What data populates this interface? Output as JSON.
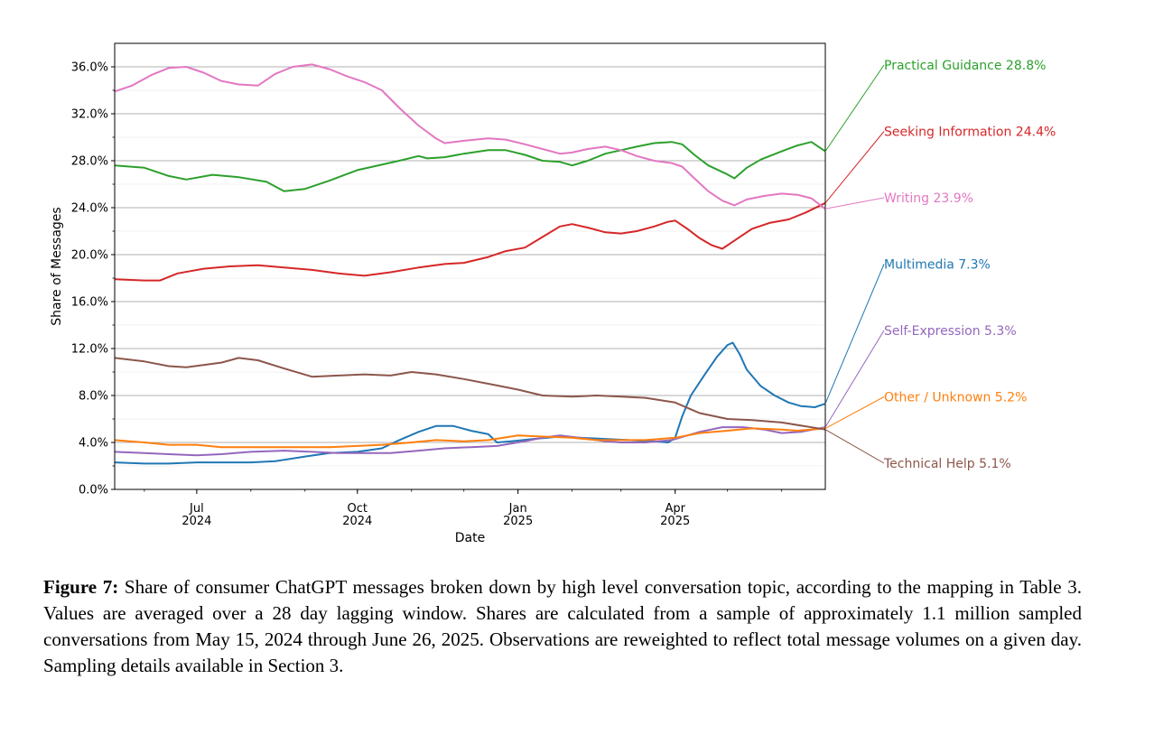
{
  "chart_data": {
    "type": "line",
    "xlabel": "Date",
    "ylabel": "Share of Messages",
    "x_range": [
      "2024-05-15",
      "2025-06-26"
    ],
    "ylim": [
      0,
      38
    ],
    "y_ticks": [
      0,
      4,
      8,
      12,
      16,
      20,
      24,
      28,
      32,
      36
    ],
    "y_tick_labels": [
      "0.0%",
      "4.0%",
      "8.0%",
      "12.0%",
      "16.0%",
      "20.0%",
      "24.0%",
      "28.0%",
      "32.0%",
      "36.0%"
    ],
    "x_ticks": [
      {
        "date": "2024-07-01",
        "month": "Jul",
        "year": "2024"
      },
      {
        "date": "2024-10-01",
        "month": "Oct",
        "year": "2024"
      },
      {
        "date": "2025-01-01",
        "month": "Jan",
        "year": "2025"
      },
      {
        "date": "2025-04-01",
        "month": "Apr",
        "year": "2025"
      }
    ],
    "grid": "horizontal",
    "series": [
      {
        "name": "Practical Guidance",
        "end_label": "28.8%",
        "color": "#2ca02c",
        "points": [
          [
            "2024-05-15",
            27.6
          ],
          [
            "2024-06-01",
            27.4
          ],
          [
            "2024-06-15",
            26.7
          ],
          [
            "2024-06-25",
            26.4
          ],
          [
            "2024-07-10",
            26.8
          ],
          [
            "2024-07-25",
            26.6
          ],
          [
            "2024-08-10",
            26.2
          ],
          [
            "2024-08-20",
            25.4
          ],
          [
            "2024-09-01",
            25.6
          ],
          [
            "2024-09-15",
            26.3
          ],
          [
            "2024-10-01",
            27.2
          ],
          [
            "2024-10-10",
            27.5
          ],
          [
            "2024-10-25",
            28.0
          ],
          [
            "2024-11-05",
            28.4
          ],
          [
            "2024-11-10",
            28.2
          ],
          [
            "2024-11-20",
            28.3
          ],
          [
            "2024-12-01",
            28.6
          ],
          [
            "2024-12-15",
            28.9
          ],
          [
            "2024-12-25",
            28.9
          ],
          [
            "2025-01-05",
            28.5
          ],
          [
            "2025-01-15",
            28.0
          ],
          [
            "2025-01-25",
            27.9
          ],
          [
            "2025-02-01",
            27.6
          ],
          [
            "2025-02-10",
            28.0
          ],
          [
            "2025-02-20",
            28.6
          ],
          [
            "2025-03-01",
            28.9
          ],
          [
            "2025-03-10",
            29.2
          ],
          [
            "2025-03-20",
            29.5
          ],
          [
            "2025-03-30",
            29.6
          ],
          [
            "2025-04-05",
            29.4
          ],
          [
            "2025-04-12",
            28.5
          ],
          [
            "2025-04-20",
            27.6
          ],
          [
            "2025-04-30",
            26.9
          ],
          [
            "2025-05-05",
            26.5
          ],
          [
            "2025-05-12",
            27.4
          ],
          [
            "2025-05-20",
            28.1
          ],
          [
            "2025-06-01",
            28.8
          ],
          [
            "2025-06-10",
            29.3
          ],
          [
            "2025-06-18",
            29.6
          ],
          [
            "2025-06-26",
            28.8
          ]
        ]
      },
      {
        "name": "Seeking Information",
        "end_label": "24.4%",
        "color": "#d62728",
        "points": [
          [
            "2024-05-15",
            17.9
          ],
          [
            "2024-06-01",
            17.8
          ],
          [
            "2024-06-10",
            17.8
          ],
          [
            "2024-06-20",
            18.4
          ],
          [
            "2024-07-05",
            18.8
          ],
          [
            "2024-07-20",
            19.0
          ],
          [
            "2024-08-05",
            19.1
          ],
          [
            "2024-08-20",
            18.9
          ],
          [
            "2024-09-05",
            18.7
          ],
          [
            "2024-09-20",
            18.4
          ],
          [
            "2024-10-05",
            18.2
          ],
          [
            "2024-10-20",
            18.5
          ],
          [
            "2024-11-05",
            18.9
          ],
          [
            "2024-11-20",
            19.2
          ],
          [
            "2024-12-01",
            19.3
          ],
          [
            "2024-12-15",
            19.8
          ],
          [
            "2024-12-25",
            20.3
          ],
          [
            "2025-01-05",
            20.6
          ],
          [
            "2025-01-15",
            21.5
          ],
          [
            "2025-01-25",
            22.4
          ],
          [
            "2025-02-01",
            22.6
          ],
          [
            "2025-02-10",
            22.3
          ],
          [
            "2025-02-20",
            21.9
          ],
          [
            "2025-03-01",
            21.8
          ],
          [
            "2025-03-10",
            22.0
          ],
          [
            "2025-03-20",
            22.4
          ],
          [
            "2025-03-28",
            22.8
          ],
          [
            "2025-04-01",
            22.9
          ],
          [
            "2025-04-08",
            22.2
          ],
          [
            "2025-04-15",
            21.4
          ],
          [
            "2025-04-22",
            20.8
          ],
          [
            "2025-04-28",
            20.5
          ],
          [
            "2025-05-05",
            21.2
          ],
          [
            "2025-05-15",
            22.2
          ],
          [
            "2025-05-25",
            22.7
          ],
          [
            "2025-06-05",
            23.0
          ],
          [
            "2025-06-15",
            23.6
          ],
          [
            "2025-06-26",
            24.4
          ]
        ]
      },
      {
        "name": "Writing",
        "end_label": "23.9%",
        "color": "#e377c2",
        "points": [
          [
            "2024-05-15",
            33.9
          ],
          [
            "2024-05-25",
            34.4
          ],
          [
            "2024-06-05",
            35.3
          ],
          [
            "2024-06-15",
            35.9
          ],
          [
            "2024-06-25",
            36.0
          ],
          [
            "2024-07-05",
            35.5
          ],
          [
            "2024-07-15",
            34.8
          ],
          [
            "2024-07-25",
            34.5
          ],
          [
            "2024-08-05",
            34.4
          ],
          [
            "2024-08-15",
            35.4
          ],
          [
            "2024-08-25",
            36.0
          ],
          [
            "2024-09-05",
            36.2
          ],
          [
            "2024-09-15",
            35.8
          ],
          [
            "2024-09-25",
            35.2
          ],
          [
            "2024-10-05",
            34.7
          ],
          [
            "2024-10-15",
            34.0
          ],
          [
            "2024-10-25",
            32.5
          ],
          [
            "2024-11-05",
            31.0
          ],
          [
            "2024-11-15",
            29.9
          ],
          [
            "2024-11-20",
            29.5
          ],
          [
            "2024-12-01",
            29.7
          ],
          [
            "2024-12-15",
            29.9
          ],
          [
            "2024-12-25",
            29.8
          ],
          [
            "2025-01-05",
            29.4
          ],
          [
            "2025-01-15",
            29.0
          ],
          [
            "2025-01-25",
            28.6
          ],
          [
            "2025-02-01",
            28.7
          ],
          [
            "2025-02-10",
            29.0
          ],
          [
            "2025-02-20",
            29.2
          ],
          [
            "2025-03-01",
            28.9
          ],
          [
            "2025-03-10",
            28.4
          ],
          [
            "2025-03-20",
            28.0
          ],
          [
            "2025-03-30",
            27.8
          ],
          [
            "2025-04-05",
            27.5
          ],
          [
            "2025-04-12",
            26.5
          ],
          [
            "2025-04-20",
            25.4
          ],
          [
            "2025-04-28",
            24.6
          ],
          [
            "2025-05-05",
            24.2
          ],
          [
            "2025-05-12",
            24.7
          ],
          [
            "2025-05-22",
            25.0
          ],
          [
            "2025-06-01",
            25.2
          ],
          [
            "2025-06-10",
            25.1
          ],
          [
            "2025-06-18",
            24.8
          ],
          [
            "2025-06-26",
            23.9
          ]
        ]
      },
      {
        "name": "Multimedia",
        "end_label": "7.3%",
        "color": "#1f77b4",
        "points": [
          [
            "2024-05-15",
            2.3
          ],
          [
            "2024-06-01",
            2.2
          ],
          [
            "2024-06-15",
            2.2
          ],
          [
            "2024-07-01",
            2.3
          ],
          [
            "2024-07-15",
            2.3
          ],
          [
            "2024-08-01",
            2.3
          ],
          [
            "2024-08-15",
            2.4
          ],
          [
            "2024-09-01",
            2.8
          ],
          [
            "2024-09-15",
            3.1
          ],
          [
            "2024-10-01",
            3.2
          ],
          [
            "2024-10-15",
            3.5
          ],
          [
            "2024-10-25",
            4.2
          ],
          [
            "2024-11-05",
            4.9
          ],
          [
            "2024-11-15",
            5.4
          ],
          [
            "2024-11-25",
            5.4
          ],
          [
            "2024-12-05",
            5.0
          ],
          [
            "2024-12-15",
            4.7
          ],
          [
            "2024-12-20",
            4.0
          ],
          [
            "2024-12-28",
            4.1
          ],
          [
            "2025-01-10",
            4.3
          ],
          [
            "2025-01-25",
            4.5
          ],
          [
            "2025-02-05",
            4.4
          ],
          [
            "2025-02-20",
            4.3
          ],
          [
            "2025-03-05",
            4.2
          ],
          [
            "2025-03-20",
            4.1
          ],
          [
            "2025-03-28",
            4.0
          ],
          [
            "2025-04-01",
            4.4
          ],
          [
            "2025-04-05",
            6.2
          ],
          [
            "2025-04-10",
            8.0
          ],
          [
            "2025-04-18",
            9.8
          ],
          [
            "2025-04-25",
            11.3
          ],
          [
            "2025-05-01",
            12.3
          ],
          [
            "2025-05-04",
            12.5
          ],
          [
            "2025-05-08",
            11.5
          ],
          [
            "2025-05-12",
            10.2
          ],
          [
            "2025-05-20",
            8.8
          ],
          [
            "2025-05-28",
            8.0
          ],
          [
            "2025-06-05",
            7.4
          ],
          [
            "2025-06-12",
            7.1
          ],
          [
            "2025-06-20",
            7.0
          ],
          [
            "2025-06-26",
            7.3
          ]
        ]
      },
      {
        "name": "Self-Expression",
        "end_label": "5.3%",
        "color": "#9467bd",
        "points": [
          [
            "2024-05-15",
            3.2
          ],
          [
            "2024-06-01",
            3.1
          ],
          [
            "2024-06-15",
            3.0
          ],
          [
            "2024-07-01",
            2.9
          ],
          [
            "2024-07-15",
            3.0
          ],
          [
            "2024-08-01",
            3.2
          ],
          [
            "2024-08-20",
            3.3
          ],
          [
            "2024-09-05",
            3.2
          ],
          [
            "2024-09-20",
            3.1
          ],
          [
            "2024-10-05",
            3.1
          ],
          [
            "2024-10-20",
            3.1
          ],
          [
            "2024-11-05",
            3.3
          ],
          [
            "2024-11-20",
            3.5
          ],
          [
            "2024-12-05",
            3.6
          ],
          [
            "2024-12-20",
            3.7
          ],
          [
            "2025-01-05",
            4.1
          ],
          [
            "2025-01-15",
            4.4
          ],
          [
            "2025-01-25",
            4.6
          ],
          [
            "2025-02-05",
            4.4
          ],
          [
            "2025-02-20",
            4.1
          ],
          [
            "2025-03-01",
            4.0
          ],
          [
            "2025-03-15",
            4.0
          ],
          [
            "2025-03-30",
            4.2
          ],
          [
            "2025-04-15",
            4.9
          ],
          [
            "2025-04-28",
            5.3
          ],
          [
            "2025-05-10",
            5.3
          ],
          [
            "2025-05-22",
            5.1
          ],
          [
            "2025-06-01",
            4.8
          ],
          [
            "2025-06-12",
            4.9
          ],
          [
            "2025-06-26",
            5.3
          ]
        ]
      },
      {
        "name": "Other / Unknown",
        "end_label": "5.2%",
        "color": "#ff7f0e",
        "points": [
          [
            "2024-05-15",
            4.2
          ],
          [
            "2024-06-01",
            4.0
          ],
          [
            "2024-06-15",
            3.8
          ],
          [
            "2024-07-01",
            3.8
          ],
          [
            "2024-07-15",
            3.6
          ],
          [
            "2024-08-01",
            3.6
          ],
          [
            "2024-08-15",
            3.6
          ],
          [
            "2024-09-01",
            3.6
          ],
          [
            "2024-09-15",
            3.6
          ],
          [
            "2024-10-01",
            3.7
          ],
          [
            "2024-10-15",
            3.8
          ],
          [
            "2024-11-01",
            4.0
          ],
          [
            "2024-11-15",
            4.2
          ],
          [
            "2024-12-01",
            4.1
          ],
          [
            "2024-12-15",
            4.2
          ],
          [
            "2025-01-01",
            4.6
          ],
          [
            "2025-01-15",
            4.5
          ],
          [
            "2025-02-01",
            4.4
          ],
          [
            "2025-02-15",
            4.2
          ],
          [
            "2025-03-01",
            4.2
          ],
          [
            "2025-03-15",
            4.2
          ],
          [
            "2025-04-01",
            4.4
          ],
          [
            "2025-04-15",
            4.8
          ],
          [
            "2025-05-01",
            5.0
          ],
          [
            "2025-05-15",
            5.2
          ],
          [
            "2025-06-01",
            5.1
          ],
          [
            "2025-06-10",
            5.0
          ],
          [
            "2025-06-26",
            5.2
          ]
        ]
      },
      {
        "name": "Technical Help",
        "end_label": "5.1%",
        "color": "#8c564b",
        "points": [
          [
            "2024-05-15",
            11.2
          ],
          [
            "2024-06-01",
            10.9
          ],
          [
            "2024-06-15",
            10.5
          ],
          [
            "2024-06-25",
            10.4
          ],
          [
            "2024-07-15",
            10.8
          ],
          [
            "2024-07-25",
            11.2
          ],
          [
            "2024-08-05",
            11.0
          ],
          [
            "2024-08-20",
            10.3
          ],
          [
            "2024-09-05",
            9.6
          ],
          [
            "2024-09-20",
            9.7
          ],
          [
            "2024-10-05",
            9.8
          ],
          [
            "2024-10-20",
            9.7
          ],
          [
            "2024-11-01",
            10.0
          ],
          [
            "2024-11-15",
            9.8
          ],
          [
            "2024-12-01",
            9.4
          ],
          [
            "2024-12-15",
            9.0
          ],
          [
            "2025-01-01",
            8.5
          ],
          [
            "2025-01-15",
            8.0
          ],
          [
            "2025-02-01",
            7.9
          ],
          [
            "2025-02-15",
            8.0
          ],
          [
            "2025-03-01",
            7.9
          ],
          [
            "2025-03-15",
            7.8
          ],
          [
            "2025-04-01",
            7.4
          ],
          [
            "2025-04-15",
            6.5
          ],
          [
            "2025-05-01",
            6.0
          ],
          [
            "2025-05-15",
            5.9
          ],
          [
            "2025-06-01",
            5.7
          ],
          [
            "2025-06-26",
            5.1
          ]
        ]
      }
    ]
  },
  "caption": {
    "label": "Figure 7:",
    "text": " Share of consumer ChatGPT messages broken down by high level conversation topic, according to the mapping in Table 3. Values are averaged over a 28 day lagging window. Shares are calculated from a sample of approximately 1.1 million sampled conversations from May 15, 2024 through June 26, 2025. Observations are reweighted to reflect total message volumes on a given day. Sampling details available in Section 3."
  }
}
